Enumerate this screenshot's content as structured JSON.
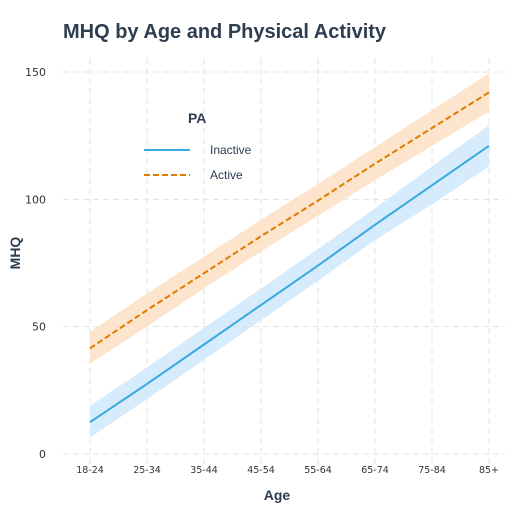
{
  "chart_data": {
    "type": "line",
    "title": "MHQ by Age and Physical Activity",
    "xlabel": "Age",
    "ylabel": "MHQ",
    "categories": [
      "18-24",
      "25-34",
      "35-44",
      "45-54",
      "55-64",
      "65-74",
      "75-84",
      "85+"
    ],
    "ylim": [
      0,
      160
    ],
    "yticks": [
      0,
      50,
      100,
      150
    ],
    "grid": true,
    "legend": {
      "title": "PA",
      "placement": "top-left (inside)"
    },
    "series": [
      {
        "name": "Inactive",
        "color": "#3aa8e0",
        "band_color": "#cfe8fb",
        "line_style": "solid",
        "values": [
          12.5,
          27.5,
          43,
          58.5,
          74,
          90,
          105.5,
          121
        ],
        "lower": [
          6.5,
          21.5,
          37,
          52.5,
          68,
          84,
          98,
          113
        ],
        "upper": [
          19,
          34,
          49.5,
          65,
          80.5,
          96.5,
          113,
          129
        ]
      },
      {
        "name": "Active",
        "color": "#e07b00",
        "band_color": "#fde0c4",
        "line_style": "dashed",
        "values": [
          41.5,
          56.5,
          71,
          85.5,
          99.5,
          114,
          128,
          142
        ],
        "lower": [
          35.5,
          50,
          65,
          79.5,
          93.5,
          107.5,
          121,
          134.5
        ],
        "upper": [
          48,
          63,
          77.5,
          92,
          106,
          120.5,
          135,
          149.5
        ]
      }
    ]
  }
}
